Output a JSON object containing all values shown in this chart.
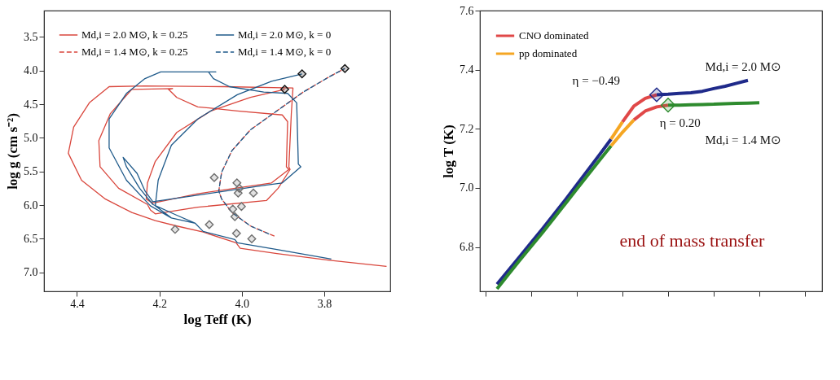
{
  "chart_data": [
    {
      "type": "line",
      "xlabel": "log Teff (K)",
      "ylabel": "log g (cm s⁻²)",
      "xlim": [
        4.48,
        3.64
      ],
      "ylim": [
        7.28,
        3.11
      ],
      "xticks": [
        4.4,
        4.2,
        {
          "value": 4.0,
          "label": "4.0"
        },
        3.8
      ],
      "yticks": [
        3.5,
        {
          "value": 4.0,
          "label": "4.0"
        },
        4.5,
        {
          "value": 5.0,
          "label": "5.0"
        },
        5.5,
        {
          "value": 6.0,
          "label": "6.0"
        },
        6.5,
        {
          "value": 7.0,
          "label": "7.0"
        }
      ],
      "legend": "top left",
      "series": [
        {
          "name": "Md,i = 2.0 M⊙, k = 0.25",
          "color": "#d9463c",
          "line_style": "solid",
          "x": [
            3.649,
            3.787,
            3.915,
            4.004,
            4.014,
            4.094,
            4.158,
            4.21,
            4.267,
            4.331,
            4.389,
            4.421,
            4.408,
            4.37,
            4.322,
            4.235,
            4.043,
            3.876,
            3.88,
            3.886,
            3.883,
            3.912,
            3.94,
            4.107,
            4.21,
            4.222,
            4.229,
            4.299,
            4.344,
            4.347,
            4.319,
            4.267,
            4.168,
            4.178,
            4.158,
            4.107,
            4.011,
            3.902,
            3.889,
            3.892,
            3.886,
            3.928,
            4.107,
            4.216,
            4.232,
            4.229,
            4.21,
            4.158,
            4.075,
            3.979,
            3.896
          ],
          "values": [
            6.91,
            6.82,
            6.72,
            6.64,
            6.56,
            6.4,
            6.31,
            6.23,
            6.11,
            5.91,
            5.63,
            5.23,
            4.84,
            4.48,
            4.24,
            4.23,
            4.24,
            4.26,
            4.64,
            5.43,
            5.47,
            5.75,
            5.93,
            6.03,
            6.13,
            6.07,
            5.99,
            5.75,
            5.43,
            5.04,
            4.64,
            4.28,
            4.27,
            4.28,
            4.4,
            4.54,
            4.6,
            4.66,
            4.76,
            5.43,
            5.47,
            5.67,
            5.83,
            5.97,
            5.91,
            5.67,
            5.35,
            4.92,
            4.6,
            4.4,
            4.28
          ]
        },
        {
          "name": "Md,i = 1.4 M⊙, k = 0.25",
          "color": "#d9463c",
          "line_style": "dashed",
          "x": [
            3.921,
            3.979,
            4.024,
            4.049,
            4.056,
            4.049,
            4.024,
            3.979,
            3.915,
            3.851,
            3.787,
            3.75
          ],
          "values": [
            6.46,
            6.31,
            6.11,
            5.91,
            5.79,
            5.51,
            5.19,
            4.88,
            4.6,
            4.32,
            4.09,
            3.97
          ]
        },
        {
          "name": "Md,i = 2.0 M⊙, k = 0",
          "color": "#1f5a8a",
          "line_style": "solid",
          "x": [
            3.783,
            3.915,
            4.011,
            4.017,
            4.094,
            4.113,
            4.171,
            4.222,
            4.28,
            4.322,
            4.322,
            4.28,
            4.235,
            4.197,
            4.063,
            4.081,
            4.069,
            4.03,
            3.947,
            3.889,
            3.867,
            3.863,
            3.857,
            3.902,
            3.94,
            4.216,
            4.235,
            4.254,
            4.288,
            4.28,
            4.248,
            4.216,
            4.158,
            4.113,
            4.171,
            4.21,
            4.203,
            4.171,
            4.107,
            4.011,
            3.928,
            3.854
          ],
          "values": [
            6.8,
            6.66,
            6.56,
            6.51,
            6.39,
            6.27,
            6.19,
            6.01,
            5.63,
            5.15,
            4.72,
            4.34,
            4.12,
            4.02,
            4.02,
            4.02,
            4.12,
            4.24,
            4.32,
            4.34,
            4.48,
            5.39,
            5.43,
            5.67,
            5.7,
            5.95,
            5.79,
            5.53,
            5.29,
            5.43,
            5.75,
            5.99,
            6.15,
            6.27,
            6.19,
            6.01,
            5.63,
            5.11,
            4.72,
            4.36,
            4.16,
            4.05
          ]
        },
        {
          "name": "Md,i = 1.4 M⊙, k = 0",
          "color": "#1f5a8a",
          "line_style": "dashed",
          "x": [
            3.934,
            3.979,
            4.024,
            4.049,
            4.056,
            4.049,
            4.024,
            3.979,
            3.915,
            3.851,
            3.787,
            3.75
          ],
          "values": [
            6.43,
            6.31,
            6.11,
            5.91,
            5.79,
            5.51,
            5.19,
            4.88,
            4.6,
            4.32,
            4.09,
            3.97
          ]
        },
        {
          "type": "scatter",
          "marker": "diamond",
          "color": "#6e6e6e",
          "x": [
            4.067,
            4.012,
            4.006,
            4.009,
            3.972,
            4.001,
            4.022,
            4.017,
            4.079,
            4.162,
            4.013,
            3.976
          ],
          "values": [
            5.59,
            5.67,
            5.75,
            5.82,
            5.82,
            6.02,
            6.06,
            6.17,
            6.29,
            6.36,
            6.42,
            6.5
          ]
        },
        {
          "type": "scatter",
          "marker": "diamond",
          "color": "#111111",
          "x": [
            3.854,
            3.896,
            3.75
          ],
          "values": [
            4.05,
            4.28,
            3.97
          ]
        }
      ]
    },
    {
      "type": "line",
      "ylabel": "log T (K)",
      "ylim": [
        6.65,
        7.6
      ],
      "tick_labels": "y",
      "legend": "top left",
      "categories": [
        null,
        null,
        null,
        null,
        null,
        null,
        null,
        null,
        null,
        null,
        null,
        null,
        null,
        null,
        null,
        null,
        null,
        null,
        null,
        null,
        null,
        null,
        null,
        null,
        null,
        null,
        null,
        null,
        null,
        null
      ],
      "yticks": [
        {
          "value": 6.8,
          "label": "6.8"
        },
        {
          "value": 7.0,
          "label": "7.0"
        },
        {
          "value": 7.2,
          "label": "7.2"
        },
        {
          "value": 7.4,
          "label": "7.4"
        },
        {
          "value": 7.6,
          "label": "7.6"
        }
      ],
      "annotations": [
        "η = −0.49",
        "η = 0.20",
        "Md,i = 2.0 M⊙",
        "Md,i = 1.4 M⊙",
        "end of mass transfer"
      ],
      "series": [
        {
          "color": "#1f2a8a",
          "values": [
            null,
            6.674,
            6.721,
            6.768,
            6.815,
            6.862,
            6.911,
            6.96,
            7.011,
            7.062,
            7.113,
            7.165,
            null,
            null,
            null,
            7.315,
            7.317,
            7.32,
            7.322,
            7.327,
            7.336,
            7.344,
            7.354,
            7.364,
            null,
            null,
            null,
            null,
            null,
            null
          ]
        },
        {
          "color": "#2e8b2e",
          "values": [
            null,
            6.658,
            6.707,
            6.755,
            6.802,
            6.849,
            6.898,
            6.947,
            6.996,
            7.045,
            7.094,
            7.142,
            null,
            null,
            null,
            null,
            7.28,
            7.28,
            7.281,
            7.282,
            7.283,
            7.285,
            7.286,
            7.287,
            7.288,
            null,
            null,
            null,
            null,
            null
          ]
        },
        {
          "name": "CNO dominated",
          "color": "#e04848",
          "values": [
            null,
            null,
            null,
            null,
            null,
            null,
            null,
            null,
            null,
            null,
            null,
            null,
            7.223,
            7.277,
            7.303,
            7.315,
            null,
            null,
            null,
            null,
            null,
            null,
            null,
            null,
            null,
            null,
            null,
            null,
            null,
            null
          ]
        },
        {
          "color": "#e04848",
          "values": [
            null,
            null,
            null,
            null,
            null,
            null,
            null,
            null,
            null,
            null,
            null,
            null,
            null,
            7.23,
            7.26,
            7.274,
            7.28,
            null,
            null,
            null,
            null,
            null,
            null,
            null,
            null,
            null,
            null,
            null,
            null,
            null
          ]
        },
        {
          "name": "pp dominated",
          "color": "#f5a623",
          "values": [
            null,
            null,
            null,
            null,
            null,
            null,
            null,
            null,
            null,
            null,
            null,
            7.165,
            7.223,
            null,
            null,
            null,
            null,
            null,
            null,
            null,
            null,
            null,
            null,
            null,
            null,
            null,
            null,
            null,
            null,
            null
          ]
        },
        {
          "color": "#f5a623",
          "values": [
            null,
            null,
            null,
            null,
            null,
            null,
            null,
            null,
            null,
            null,
            null,
            7.142,
            7.188,
            7.23,
            null,
            null,
            null,
            null,
            null,
            null,
            null,
            null,
            null,
            null,
            null,
            null,
            null,
            null,
            null,
            null
          ]
        },
        {
          "type": "scatter",
          "marker": "diamond",
          "color": "#1f2a8a",
          "values": [
            null,
            null,
            null,
            null,
            null,
            null,
            null,
            null,
            null,
            null,
            null,
            null,
            null,
            null,
            null,
            7.315,
            null,
            null,
            null,
            null,
            null,
            null,
            null,
            null,
            null,
            null,
            null,
            null,
            null,
            null
          ]
        },
        {
          "type": "scatter",
          "marker": "diamond",
          "color": "#2e8b2e",
          "values": [
            null,
            null,
            null,
            null,
            null,
            null,
            null,
            null,
            null,
            null,
            null,
            null,
            null,
            null,
            null,
            null,
            7.28,
            null,
            null,
            null,
            null,
            null,
            null,
            null,
            null,
            null,
            null,
            null,
            null,
            null
          ]
        }
      ]
    }
  ]
}
